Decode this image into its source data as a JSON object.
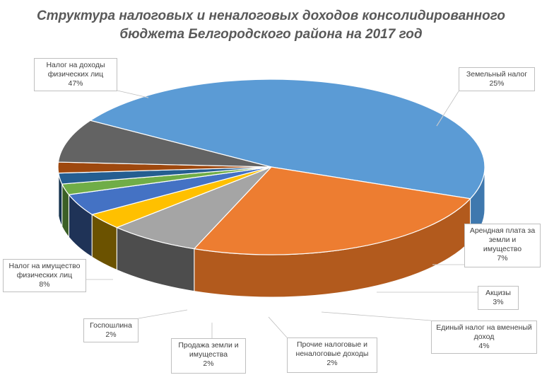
{
  "chart_data": {
    "type": "pie",
    "title_line1": "Структура налоговых и неналоговых доходов  консолидированного",
    "title_line2": "бюджета Белгородского района на 2017 год",
    "slices": [
      {
        "name_lines": [
          "Налог на доходы",
          "физических лиц"
        ],
        "percent_label": "47%",
        "value": 47,
        "color": "#5B9BD5",
        "side_color": "#3F78AE"
      },
      {
        "name_lines": [
          "Земельный налог"
        ],
        "percent_label": "25%",
        "value": 25,
        "color": "#ED7D31",
        "side_color": "#B25A1D"
      },
      {
        "name_lines": [
          "Арендная плата за",
          "земли и",
          "имущество"
        ],
        "percent_label": "7%",
        "value": 7,
        "color": "#A5A5A5",
        "side_color": "#4D4D4D"
      },
      {
        "name_lines": [
          "Акцизы"
        ],
        "percent_label": "3%",
        "value": 3,
        "color": "#FFC000",
        "side_color": "#6B5200"
      },
      {
        "name_lines": [
          "Единый налог на вмененый",
          "доход"
        ],
        "percent_label": "4%",
        "value": 4,
        "color": "#4472C4",
        "side_color": "#1F3357"
      },
      {
        "name_lines": [
          "Прочие  налоговые и",
          "неналоговые доходы"
        ],
        "percent_label": "2%",
        "value": 2,
        "color": "#70AD47",
        "side_color": "#3B5F26"
      },
      {
        "name_lines": [
          "Продажа земли и",
          "имущества"
        ],
        "percent_label": "2%",
        "value": 2,
        "color": "#255E91",
        "side_color": "#15334E"
      },
      {
        "name_lines": [
          "Госпошлина"
        ],
        "percent_label": "2%",
        "value": 2,
        "color": "#9E480E",
        "side_color": "#6A2F08"
      },
      {
        "name_lines": [
          "Налог на имущество",
          "физических лиц"
        ],
        "percent_label": "8%",
        "value": 8,
        "color": "#636363",
        "side_color": "#4A4A4A"
      }
    ],
    "legend": "none",
    "data_labels": "callouts"
  }
}
